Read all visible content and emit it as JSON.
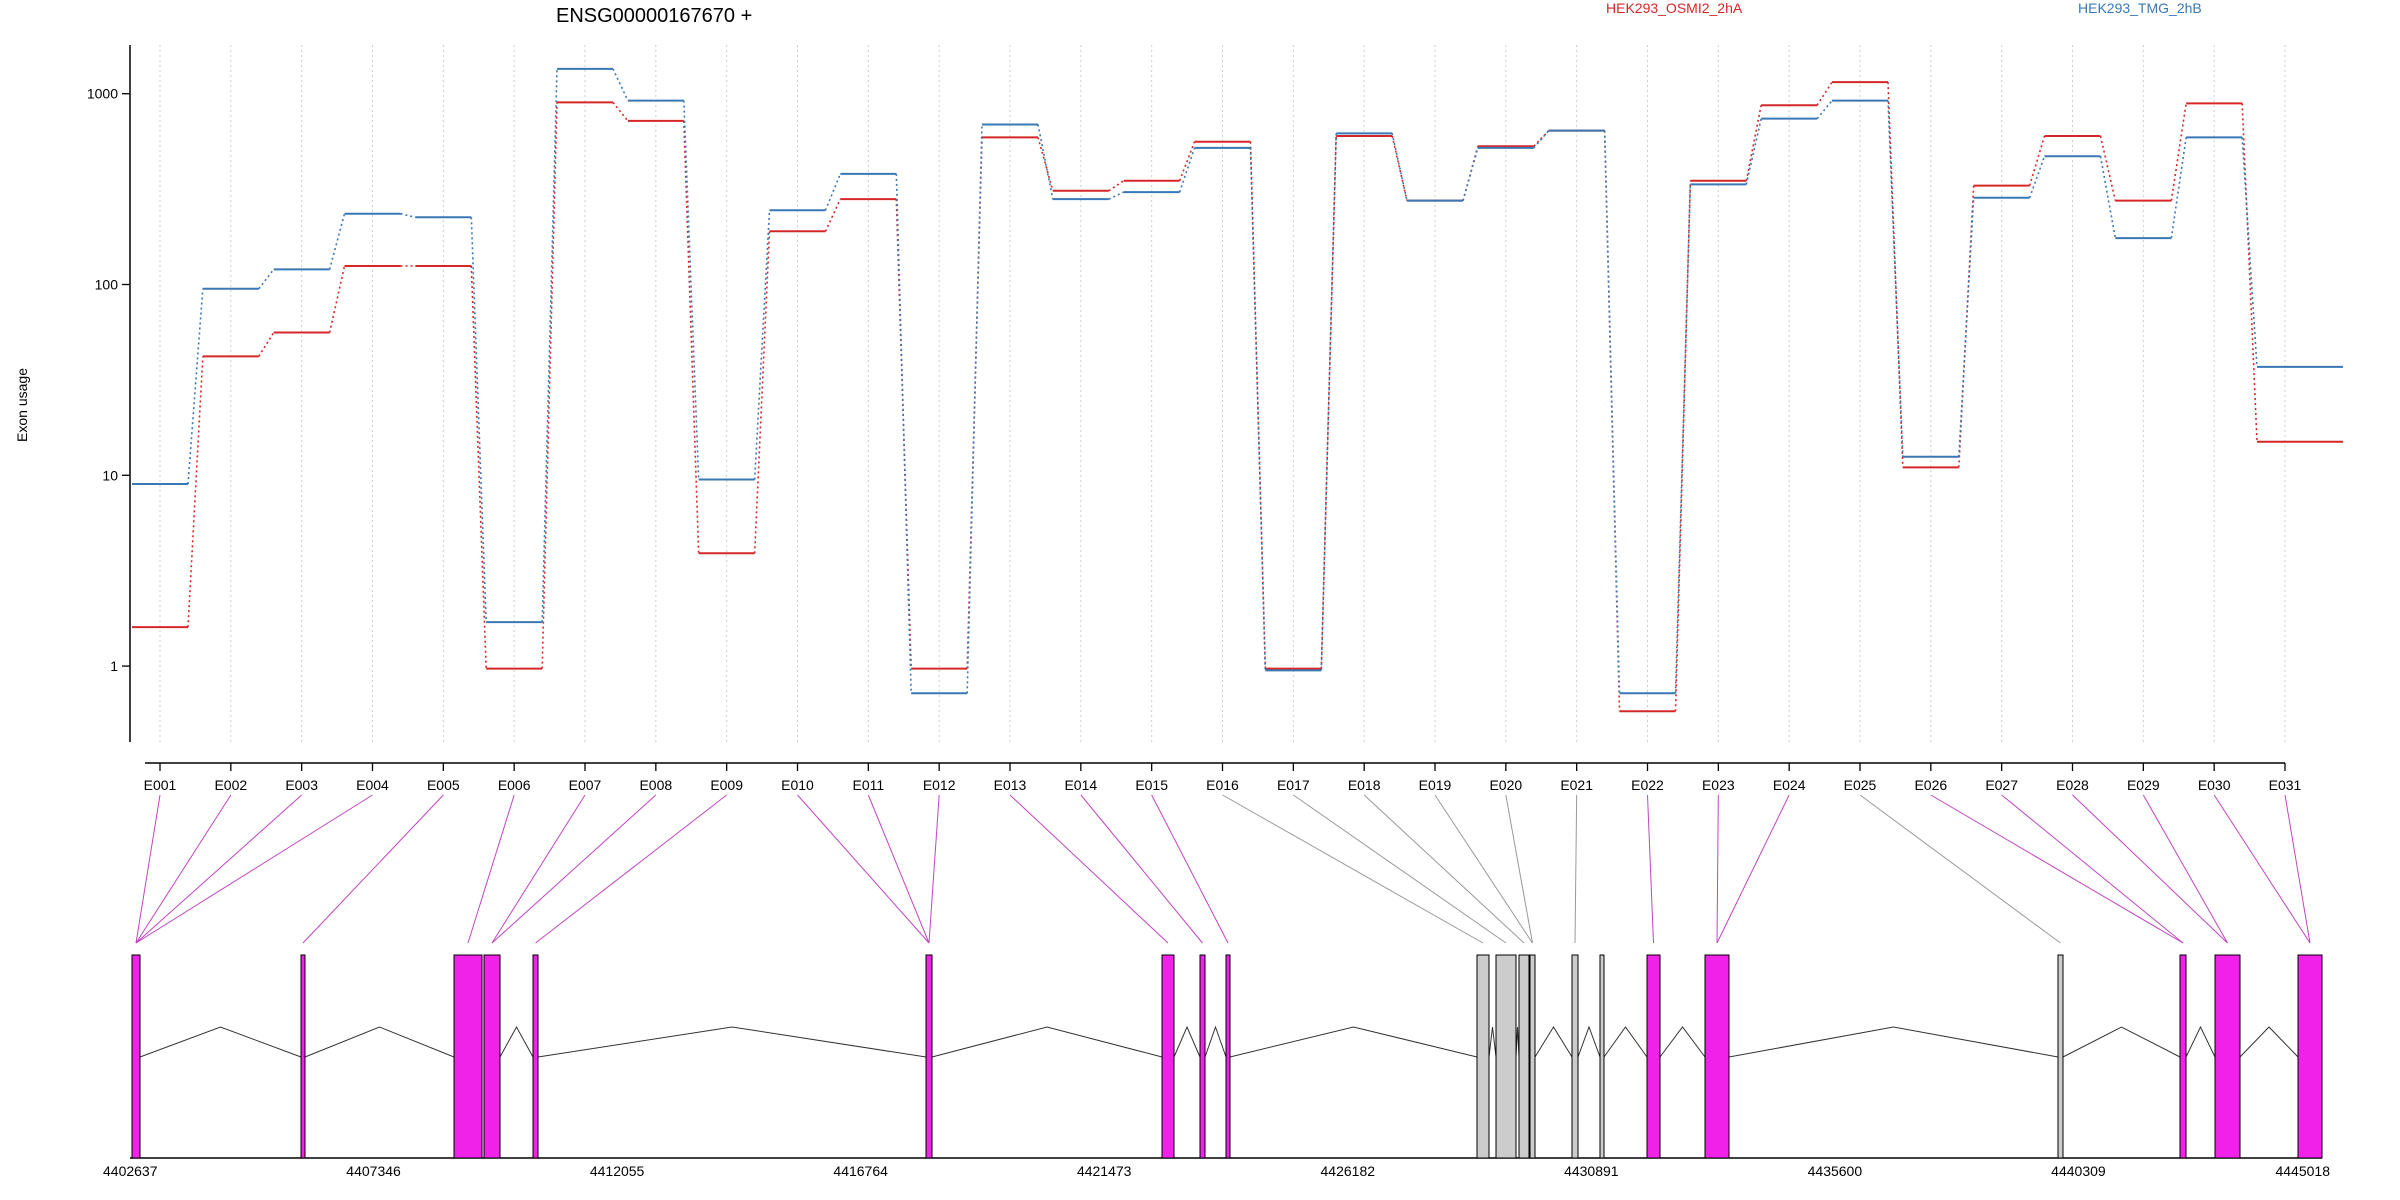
{
  "chart_data": {
    "type": "line",
    "title": "ENSG00000167670 +",
    "ylabel": "Exon usage",
    "xlabel": "",
    "y_scale": "log",
    "ylim": [
      0.4,
      1800
    ],
    "y_ticks": [
      1,
      10,
      100,
      1000
    ],
    "y_tick_labels": [
      "1",
      "10",
      "100",
      "1000"
    ],
    "grid": "vertical dotted lines at exons",
    "legend_placement": "top",
    "categories": [
      "E001",
      "E002",
      "E003",
      "E004",
      "E005",
      "E006",
      "E007",
      "E008",
      "E009",
      "E010",
      "E011",
      "E012",
      "E013",
      "E014",
      "E015",
      "E016",
      "E017",
      "E018",
      "E019",
      "E020",
      "E021",
      "E022",
      "E023",
      "E024",
      "E025",
      "E026",
      "E027",
      "E028",
      "E029",
      "E030",
      "E031"
    ],
    "series": [
      {
        "name": "HEK293_OSMI2_2hA",
        "color": "#d62728",
        "values": [
          1.6,
          42,
          56,
          125,
          125,
          0.97,
          900,
          720,
          3.9,
          190,
          280,
          0.97,
          590,
          310,
          350,
          560,
          0.97,
          600,
          275,
          530,
          640,
          0.58,
          350,
          870,
          1150,
          11,
          330,
          600,
          275,
          890,
          15
        ]
      },
      {
        "name": "HEK293_TMG_2hB",
        "color": "#3a78b5",
        "values": [
          9,
          95,
          120,
          235,
          225,
          1.7,
          1350,
          920,
          9.5,
          245,
          380,
          0.72,
          690,
          280,
          305,
          520,
          0.95,
          620,
          275,
          520,
          640,
          0.72,
          335,
          740,
          920,
          12.5,
          285,
          470,
          175,
          590,
          37
        ]
      }
    ],
    "gene_model": {
      "coordinate_ticks": [
        "4402637",
        "4407346",
        "4412055",
        "4416764",
        "4421473",
        "4426182",
        "4430891",
        "4435600",
        "4440309",
        "4445018"
      ],
      "significant_color": "#f021e8",
      "nonsignificant_color": "#cccccc"
    }
  }
}
